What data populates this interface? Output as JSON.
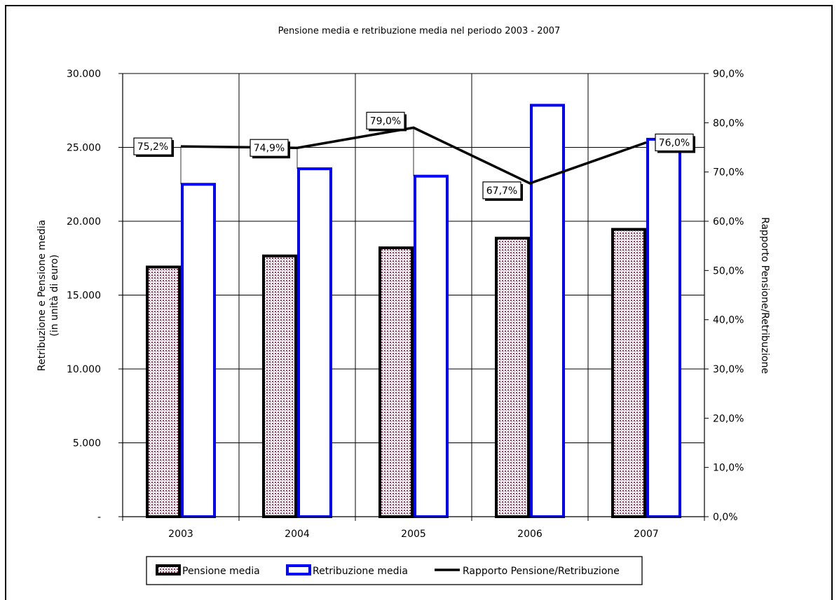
{
  "chart_data": {
    "type": "bar",
    "title": "Pensione media e retribuzione media nel periodo 2003 - 2007",
    "categories": [
      "2003",
      "2004",
      "2005",
      "2006",
      "2007"
    ],
    "ylabel": "Retribuzione e Pensione media",
    "ylabel_line2": "(in unità di euro)",
    "y2label": "Rapporto Pensione/Retribuzione",
    "ylim": [
      0,
      30000
    ],
    "y2lim": [
      0,
      90
    ],
    "y_ticks": [
      "-",
      "5.000",
      "10.000",
      "15.000",
      "20.000",
      "25.000",
      "30.000"
    ],
    "y2_ticks": [
      "0,0%",
      "10,0%",
      "20,0%",
      "30,0%",
      "40,0%",
      "50,0%",
      "60,0%",
      "70,0%",
      "80,0%",
      "90,0%"
    ],
    "grid": true,
    "legend_position": "bottom",
    "series": [
      {
        "name": "Pensione media",
        "type": "bar",
        "axis": "left",
        "values": [
          16900,
          17650,
          18200,
          18850,
          19450
        ],
        "color": "#000000",
        "fill": "#c08aa0"
      },
      {
        "name": "Retribuzione media",
        "type": "bar",
        "axis": "left",
        "values": [
          22500,
          23550,
          23050,
          27850,
          25550
        ],
        "color": "#0000ff",
        "fill": "#ffffff"
      },
      {
        "name": "Rapporto Pensione/Retribuzione",
        "type": "line",
        "axis": "right",
        "values": [
          75.2,
          74.9,
          79.0,
          67.7,
          76.0
        ],
        "labels": [
          "75,2%",
          "74,9%",
          "79,0%",
          "67,7%",
          "76,0%"
        ],
        "color": "#000000"
      }
    ]
  }
}
